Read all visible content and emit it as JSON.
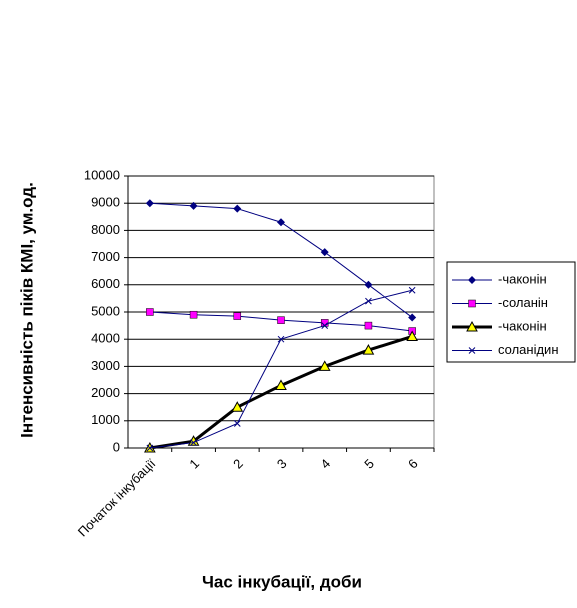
{
  "chart_data": {
    "type": "line",
    "y_label": "Інтенсивність піків КМІ, ум.од.",
    "x_label": "Час інкубації, доби",
    "categories": [
      "Початок інкубації",
      "1",
      "2",
      "3",
      "4",
      "5",
      "6"
    ],
    "ylim": [
      0,
      10000
    ],
    "yticks": [
      0,
      1000,
      2000,
      3000,
      4000,
      5000,
      6000,
      7000,
      8000,
      9000,
      10000
    ],
    "grid": true,
    "legend": "right",
    "series": [
      {
        "name": "-чаконін",
        "color": "#000080",
        "marker": "diamond",
        "marker_color": "#000080",
        "line_width": 1,
        "values": [
          9000,
          8900,
          8800,
          8300,
          7200,
          6000,
          4800
        ]
      },
      {
        "name": "-соланін",
        "color": "#000080",
        "marker": "square",
        "marker_color": "#ff00ff",
        "line_width": 1,
        "values": [
          5000,
          4900,
          4850,
          4700,
          4600,
          4500,
          4300
        ]
      },
      {
        "name": "-чаконін",
        "color": "#000000",
        "marker": "triangle",
        "marker_color": "#ffff00",
        "line_width": 3,
        "values": [
          0,
          250,
          1500,
          2300,
          3000,
          3600,
          4100
        ]
      },
      {
        "name": "соланідин",
        "color": "#000080",
        "marker": "x",
        "marker_color": "#000080",
        "line_width": 1,
        "values": [
          0,
          200,
          900,
          4000,
          4500,
          5400,
          5800
        ]
      }
    ]
  }
}
